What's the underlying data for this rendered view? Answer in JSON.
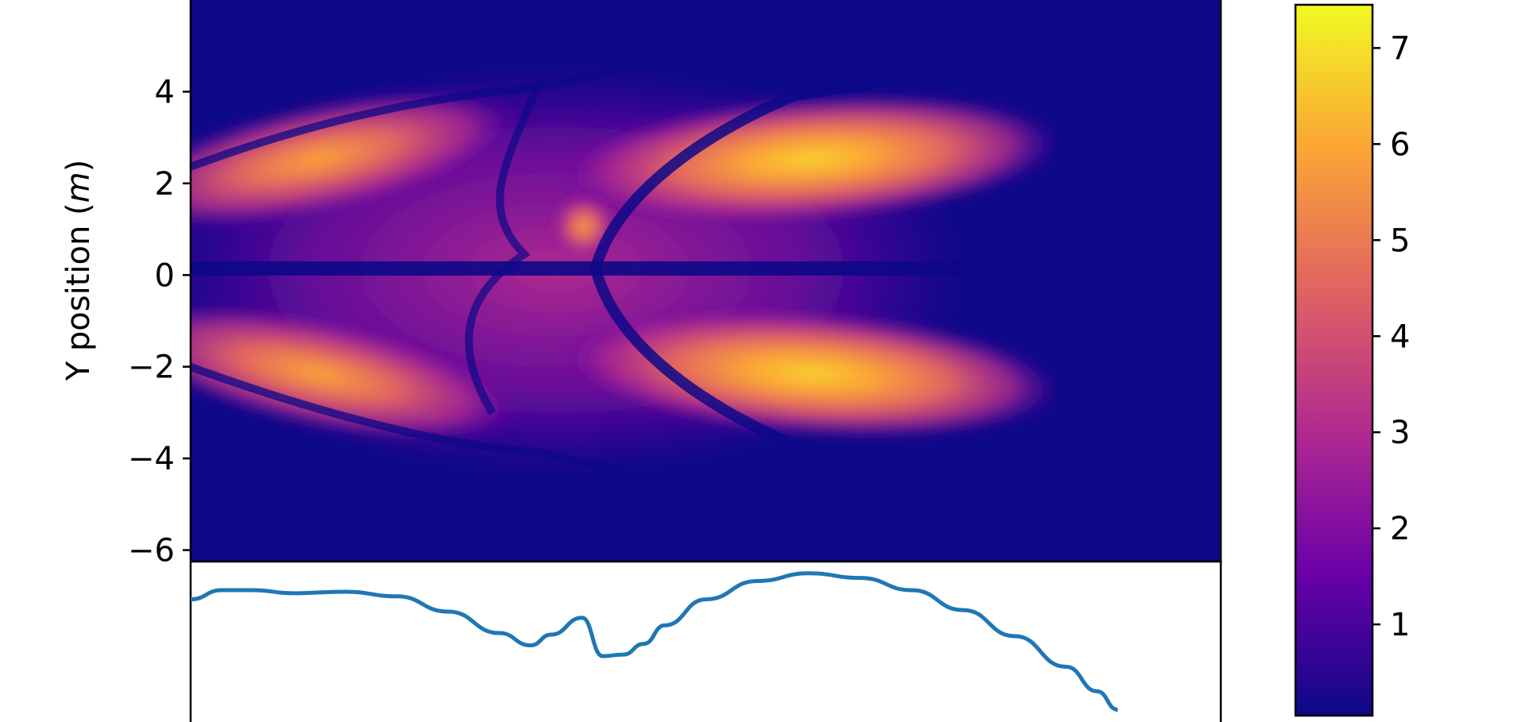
{
  "chart_data": [
    {
      "type": "heatmap",
      "title": "",
      "xlabel": "",
      "ylabel": "Y position",
      "ylabel_unit": "m",
      "y_ticks": [
        4,
        2,
        0,
        -2,
        -4,
        -6
      ],
      "y_tick_labels": [
        "4",
        "2",
        "0",
        "−2",
        "−4",
        "−6"
      ],
      "ylim": [
        -6.25,
        6
      ],
      "colormap": "plasma",
      "colormap_stops": [
        "#0d0887",
        "#6a00a8",
        "#b12a90",
        "#e16462",
        "#fca636",
        "#f0f921"
      ],
      "description_features": [
        {
          "kind": "lobe",
          "cx": 0.58,
          "cy": 2.2,
          "value": 7.3
        },
        {
          "kind": "lobe",
          "cx": 0.58,
          "cy": -2.2,
          "value": 7.3
        },
        {
          "kind": "lobe",
          "cx": 0.15,
          "cy": 1.8,
          "value": 5.5
        },
        {
          "kind": "lobe",
          "cx": 0.15,
          "cy": -2.3,
          "value": 5.5
        }
      ]
    },
    {
      "type": "bar",
      "title": "",
      "orientation": "vertical",
      "colorbar_ticks": [
        1,
        2,
        3,
        4,
        5,
        6,
        7
      ],
      "colorbar_tick_labels": [
        "1",
        "2",
        "3",
        "4",
        "5",
        "6",
        "7"
      ],
      "colorbar_range": [
        0.05,
        7.45
      ]
    },
    {
      "type": "line",
      "title": "",
      "color": "#1f77b4",
      "x": [
        0.0,
        0.03,
        0.06,
        0.1,
        0.15,
        0.2,
        0.25,
        0.3,
        0.33,
        0.35,
        0.38,
        0.4,
        0.42,
        0.44,
        0.46,
        0.5,
        0.55,
        0.6,
        0.65,
        0.7,
        0.75,
        0.8,
        0.85,
        0.88,
        0.9
      ],
      "y": [
        0.8,
        0.86,
        0.86,
        0.84,
        0.85,
        0.82,
        0.72,
        0.58,
        0.5,
        0.57,
        0.68,
        0.43,
        0.44,
        0.51,
        0.63,
        0.8,
        0.92,
        0.97,
        0.94,
        0.86,
        0.73,
        0.56,
        0.36,
        0.2,
        0.08
      ],
      "ylim": [
        0,
        1
      ],
      "xlim": [
        0,
        1
      ]
    }
  ]
}
